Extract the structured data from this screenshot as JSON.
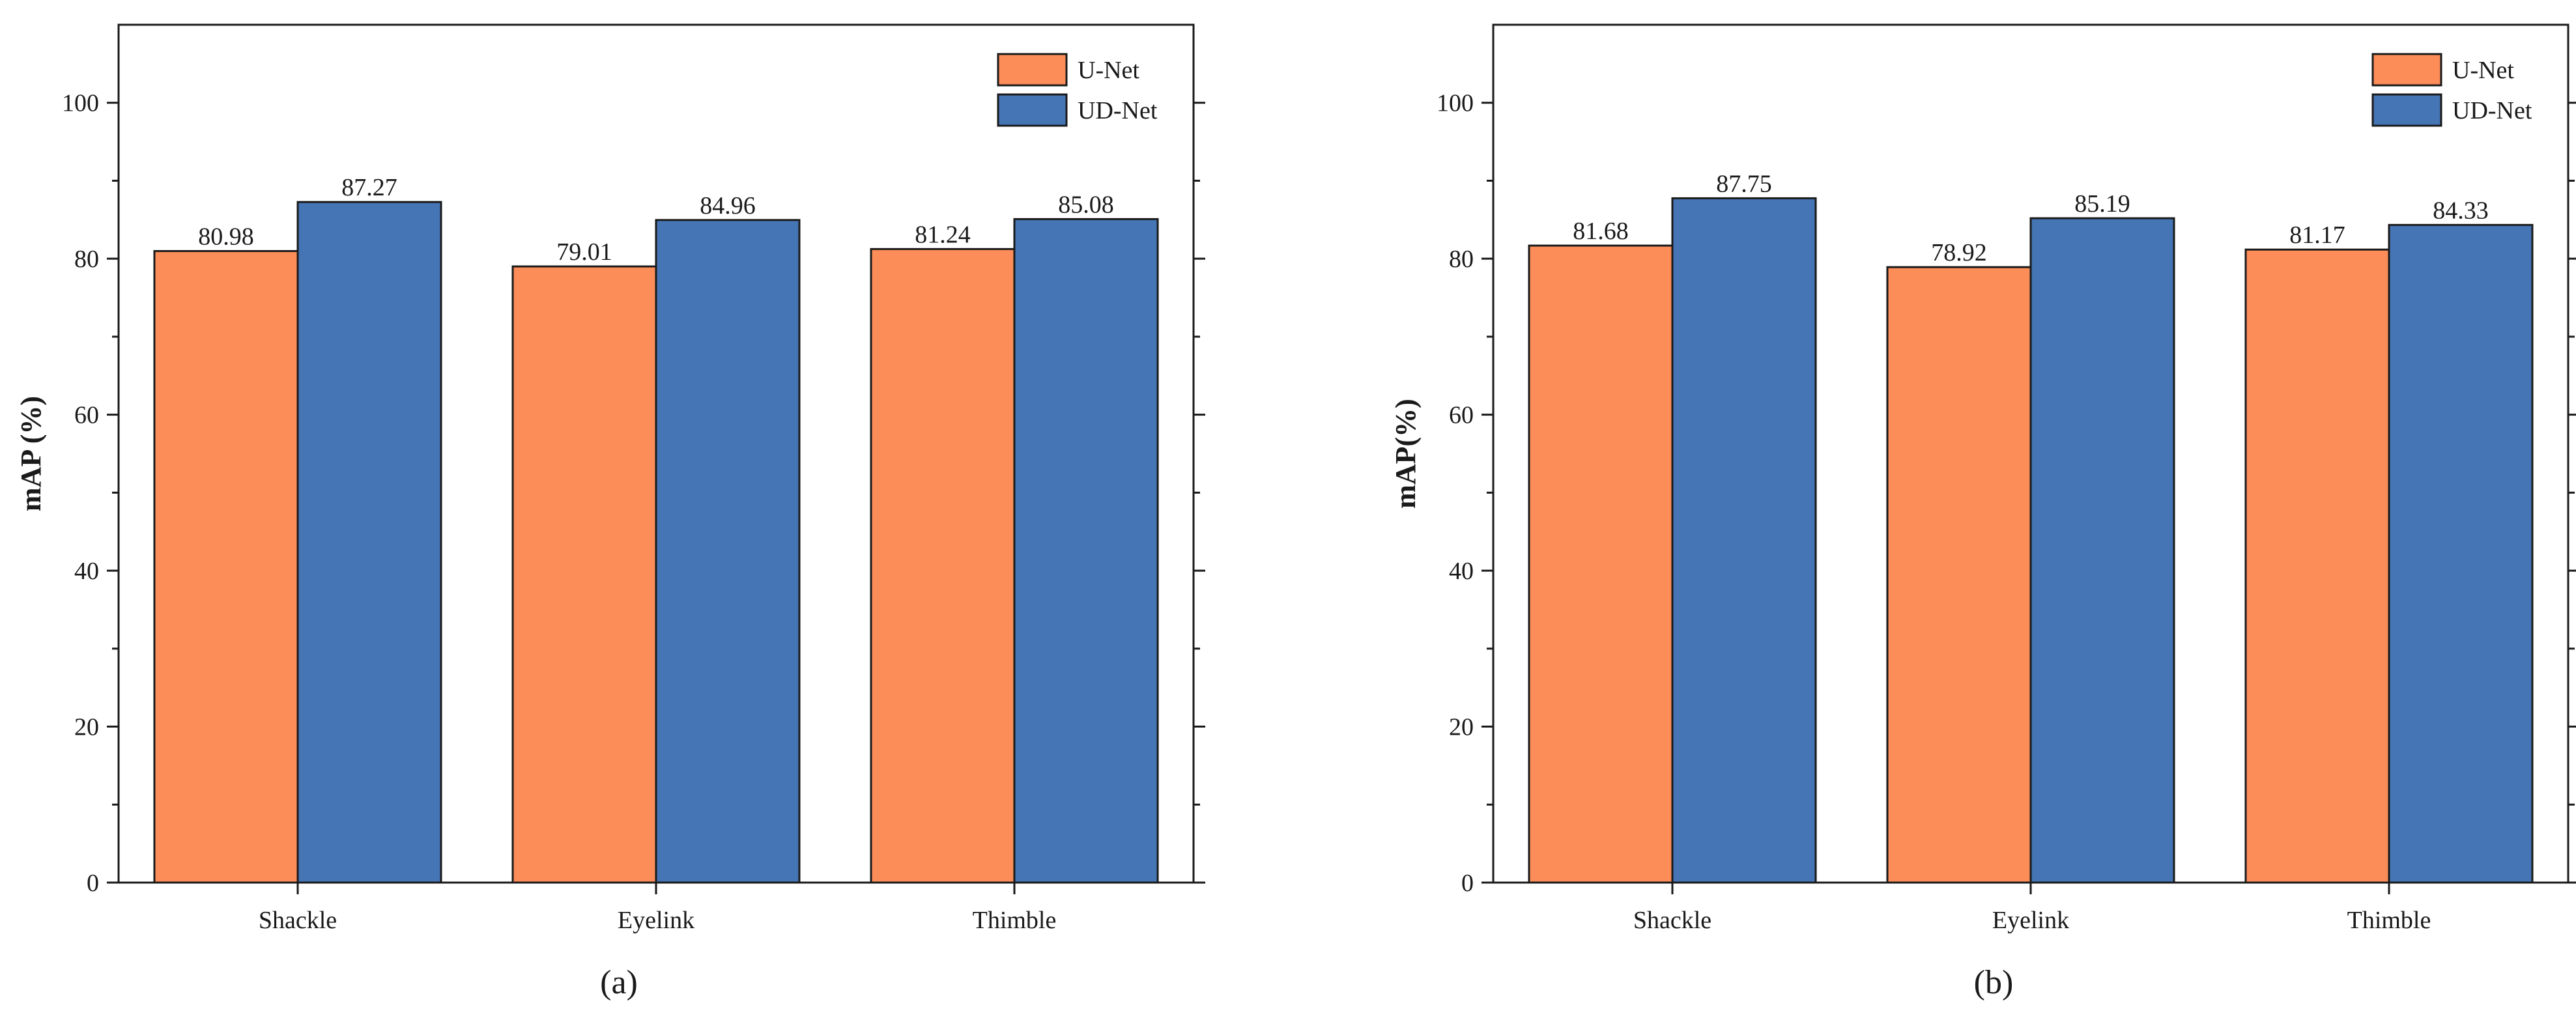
{
  "chart_data": [
    {
      "type": "bar",
      "panel_label": "(a)",
      "title": "",
      "xlabel": "",
      "ylabel": "mAP (%)",
      "ylim": [
        0,
        110
      ],
      "yticks": [
        0,
        20,
        40,
        60,
        80,
        100
      ],
      "grid": false,
      "legend_position": "top-right",
      "categories": [
        "Shackle",
        "Eyelink",
        "Thimble"
      ],
      "series": [
        {
          "name": "U-Net",
          "color": "#FC8D59",
          "values": [
            80.98,
            79.01,
            81.24
          ],
          "labels": [
            "80.98",
            "79.01",
            "81.24"
          ]
        },
        {
          "name": "UD-Net",
          "color": "#4575B4",
          "values": [
            87.27,
            84.96,
            85.08
          ],
          "labels": [
            "87.27",
            "84.96",
            "85.08"
          ]
        }
      ]
    },
    {
      "type": "bar",
      "panel_label": "(b)",
      "title": "",
      "xlabel": "",
      "ylabel": "mAP(%)",
      "ylim": [
        0,
        110
      ],
      "yticks": [
        0,
        20,
        40,
        60,
        80,
        100
      ],
      "grid": false,
      "legend_position": "top-right",
      "categories": [
        "Shackle",
        "Eyelink",
        "Thimble"
      ],
      "series": [
        {
          "name": "U-Net",
          "color": "#FC8D59",
          "values": [
            81.68,
            78.92,
            81.17
          ],
          "labels": [
            "81.68",
            "78.92",
            "81.17"
          ]
        },
        {
          "name": "UD-Net",
          "color": "#4575B4",
          "values": [
            87.75,
            85.19,
            84.33
          ],
          "labels": [
            "87.75",
            "85.19",
            "84.33"
          ]
        }
      ]
    }
  ]
}
